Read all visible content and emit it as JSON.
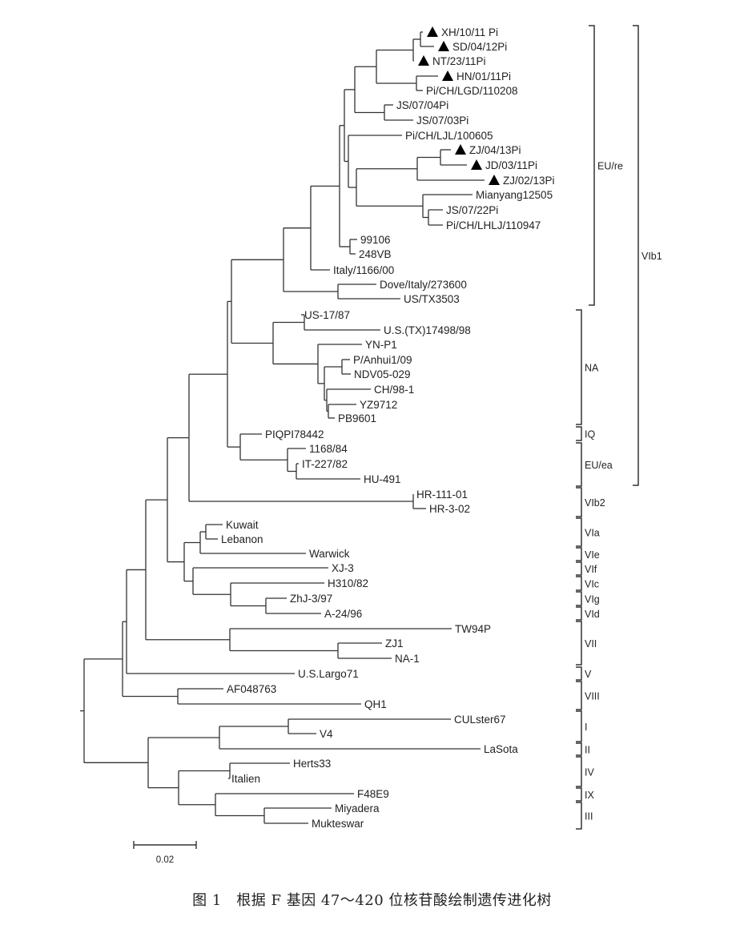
{
  "figure": {
    "caption": "图 1　根据 F 基因 47～420 位核苷酸绘制遗传进化树",
    "scale_bar": {
      "value": "0.02"
    },
    "marker_symbol": "▲",
    "marker_meaning": "filled-triangle"
  },
  "taxa": [
    {
      "id": "t1",
      "name": "XH/10/11 Pi",
      "marked": true
    },
    {
      "id": "t2",
      "name": "SD/04/12Pi",
      "marked": true
    },
    {
      "id": "t3",
      "name": "NT/23/11Pi",
      "marked": true
    },
    {
      "id": "t4",
      "name": "HN/01/11Pi",
      "marked": true
    },
    {
      "id": "t5",
      "name": "Pi/CH/LGD/110208",
      "marked": false
    },
    {
      "id": "t6",
      "name": "JS/07/04Pi",
      "marked": false
    },
    {
      "id": "t7",
      "name": "JS/07/03Pi",
      "marked": false
    },
    {
      "id": "t8",
      "name": "Pi/CH/LJL/100605",
      "marked": false
    },
    {
      "id": "t9",
      "name": "ZJ/04/13Pi",
      "marked": true
    },
    {
      "id": "t10",
      "name": "JD/03/11Pi",
      "marked": true
    },
    {
      "id": "t11",
      "name": "ZJ/02/13Pi",
      "marked": true
    },
    {
      "id": "t12",
      "name": "Mianyang12505",
      "marked": false
    },
    {
      "id": "t13",
      "name": "JS/07/22Pi",
      "marked": false
    },
    {
      "id": "t14",
      "name": "Pi/CH/LHLJ/110947",
      "marked": false
    },
    {
      "id": "t15",
      "name": "99106",
      "marked": false
    },
    {
      "id": "t16",
      "name": "248VB",
      "marked": false
    },
    {
      "id": "t17",
      "name": "Italy/1166/00",
      "marked": false
    },
    {
      "id": "t18",
      "name": "Dove/Italy/273600",
      "marked": false
    },
    {
      "id": "t19",
      "name": "US/TX3503",
      "marked": false
    },
    {
      "id": "t20",
      "name": "US-17/87",
      "marked": false
    },
    {
      "id": "t21",
      "name": "U.S.(TX)17498/98",
      "marked": false
    },
    {
      "id": "t22",
      "name": "YN-P1",
      "marked": false
    },
    {
      "id": "t23",
      "name": "P/Anhui1/09",
      "marked": false
    },
    {
      "id": "t24",
      "name": "NDV05-029",
      "marked": false
    },
    {
      "id": "t25",
      "name": "CH/98-1",
      "marked": false
    },
    {
      "id": "t26",
      "name": "YZ9712",
      "marked": false
    },
    {
      "id": "t27",
      "name": "PB9601",
      "marked": false
    },
    {
      "id": "t28",
      "name": "PIQPI78442",
      "marked": false
    },
    {
      "id": "t29",
      "name": "1168/84",
      "marked": false
    },
    {
      "id": "t30",
      "name": "IT-227/82",
      "marked": false
    },
    {
      "id": "t31",
      "name": "HU-491",
      "marked": false
    },
    {
      "id": "t32",
      "name": "HR-111-01",
      "marked": false
    },
    {
      "id": "t33",
      "name": "HR-3-02",
      "marked": false
    },
    {
      "id": "t34",
      "name": "Kuwait",
      "marked": false
    },
    {
      "id": "t35",
      "name": "Lebanon",
      "marked": false
    },
    {
      "id": "t36",
      "name": "Warwick",
      "marked": false
    },
    {
      "id": "t37",
      "name": "XJ-3",
      "marked": false
    },
    {
      "id": "t38",
      "name": "H310/82",
      "marked": false
    },
    {
      "id": "t39",
      "name": "ZhJ-3/97",
      "marked": false
    },
    {
      "id": "t40",
      "name": "A-24/96",
      "marked": false
    },
    {
      "id": "t41",
      "name": "TW94P",
      "marked": false
    },
    {
      "id": "t42",
      "name": "ZJ1",
      "marked": false
    },
    {
      "id": "t43",
      "name": "NA-1",
      "marked": false
    },
    {
      "id": "t44",
      "name": "U.S.Largo71",
      "marked": false
    },
    {
      "id": "t45",
      "name": "AF048763",
      "marked": false
    },
    {
      "id": "t46",
      "name": "QH1",
      "marked": false
    },
    {
      "id": "t47",
      "name": "CULster67",
      "marked": false
    },
    {
      "id": "t48",
      "name": "V4",
      "marked": false
    },
    {
      "id": "t49",
      "name": "LaSota",
      "marked": false
    },
    {
      "id": "t50",
      "name": "Herts33",
      "marked": false
    },
    {
      "id": "t51",
      "name": "Italien",
      "marked": false
    },
    {
      "id": "t52",
      "name": "F48E9",
      "marked": false
    },
    {
      "id": "t53",
      "name": "Miyadera",
      "marked": false
    },
    {
      "id": "t54",
      "name": "Mukteswar",
      "marked": false
    }
  ],
  "clades": [
    {
      "id": "c-eure",
      "label": "EU/re",
      "from": "t1",
      "to": "t19"
    },
    {
      "id": "c-na",
      "label": "NA",
      "from": "t20",
      "to": "t27"
    },
    {
      "id": "c-iq",
      "label": "IQ",
      "from": "t28",
      "to": "t28"
    },
    {
      "id": "c-euea",
      "label": "EU/ea",
      "from": "t29",
      "to": "t31"
    },
    {
      "id": "c-vib2",
      "label": "VIb2",
      "from": "t32",
      "to": "t33"
    },
    {
      "id": "c-via",
      "label": "VIa",
      "from": "t34",
      "to": "t35"
    },
    {
      "id": "c-vie",
      "label": "VIe",
      "from": "t36",
      "to": "t36"
    },
    {
      "id": "c-vif",
      "label": "VIf",
      "from": "t37",
      "to": "t37"
    },
    {
      "id": "c-vic",
      "label": "VIc",
      "from": "t38",
      "to": "t38"
    },
    {
      "id": "c-vig",
      "label": "VIg",
      "from": "t39",
      "to": "t39"
    },
    {
      "id": "c-vid",
      "label": "VId",
      "from": "t40",
      "to": "t40"
    },
    {
      "id": "c-vii",
      "label": "VII",
      "from": "t41",
      "to": "t43"
    },
    {
      "id": "c-v",
      "label": "V",
      "from": "t44",
      "to": "t44"
    },
    {
      "id": "c-viii",
      "label": "VIII",
      "from": "t45",
      "to": "t46"
    },
    {
      "id": "c-i",
      "label": "I",
      "from": "t47",
      "to": "t48"
    },
    {
      "id": "c-ii",
      "label": "II",
      "from": "t49",
      "to": "t49"
    },
    {
      "id": "c-iv",
      "label": "IV",
      "from": "t50",
      "to": "t51"
    },
    {
      "id": "c-ix",
      "label": "IX",
      "from": "t52",
      "to": "t52"
    },
    {
      "id": "c-iii",
      "label": "III",
      "from": "t53",
      "to": "t54"
    }
  ],
  "super_clades": [
    {
      "id": "c-vib1",
      "label": "VIb1",
      "from": "t1",
      "to": "t31"
    }
  ]
}
